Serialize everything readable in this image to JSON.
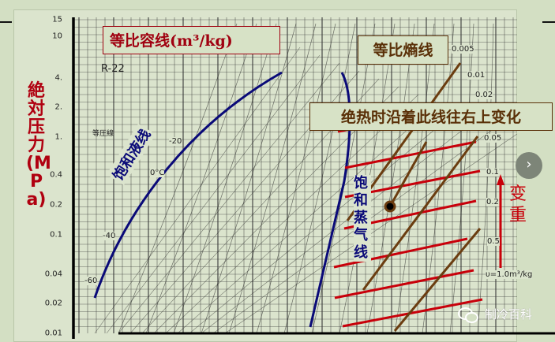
{
  "refrigerant": "R-22",
  "y_axis": {
    "label": "絶対压力(MPa)",
    "ticks": [
      "15",
      "10",
      "4.",
      "2.",
      "1.",
      "0.4",
      "0.2",
      "0.1",
      "0.04",
      "0.02",
      "0.01"
    ]
  },
  "callouts": {
    "specific_volume": "等比容线(m³/kg)",
    "entropy": "等比熵线",
    "adiabatic": "绝热时沿着此线往右上变化",
    "heavier": "变重"
  },
  "curve_labels": {
    "saturated_liquid": "饱和液线",
    "saturated_vapor": "饱和蒸气线"
  },
  "volume_labels": [
    "0.005",
    "0.01",
    "0.02",
    "0.05",
    "0.1",
    "0.2",
    "0.5",
    "υ=1.0m³/kg"
  ],
  "chart_text": {
    "isobar": "等圧線",
    "temp_labels": [
      "-60",
      "-40",
      "-20",
      "0°C"
    ]
  },
  "watermark": "制冷百科",
  "colors": {
    "background": "#d3dfc3",
    "liquid": "#0a0a78",
    "red": "#c8000a",
    "brown": "#6b3d10"
  }
}
